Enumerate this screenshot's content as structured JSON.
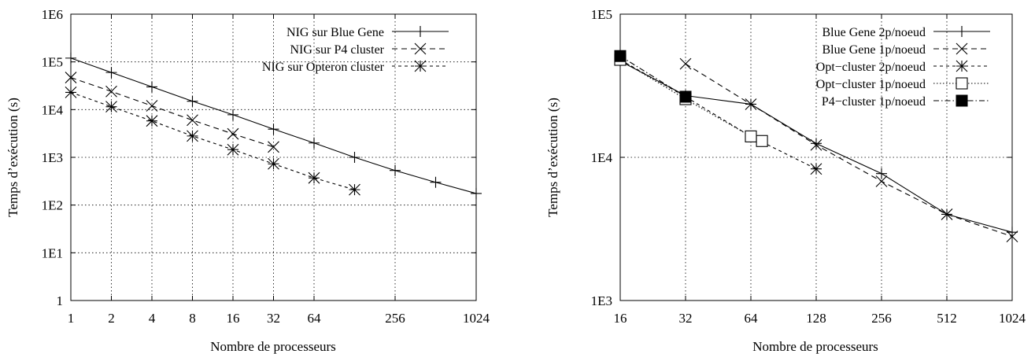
{
  "chart_data": [
    {
      "type": "line",
      "title": "",
      "xlabel": "Nombre de processeurs",
      "ylabel": "Temps d’exécution (s)",
      "x_scale": "log2",
      "y_scale": "log10",
      "xlim": [
        1,
        1024
      ],
      "ylim": [
        1,
        1000000
      ],
      "x_ticks": [
        1,
        2,
        4,
        8,
        16,
        32,
        64,
        256,
        1024
      ],
      "x_tick_labels": [
        "1",
        "2",
        "4",
        "8",
        "16",
        "32",
        "64",
        "256",
        "1024"
      ],
      "y_ticks": [
        1,
        10,
        100,
        1000,
        10000,
        100000,
        1000000
      ],
      "y_tick_labels": [
        "1",
        "1E1",
        "1E2",
        "1E3",
        "1E4",
        "1E5",
        "1E6"
      ],
      "grid": true,
      "legend_position": "top-right",
      "series": [
        {
          "name": "NIG sur Blue Gene",
          "marker": "plus",
          "line": "solid",
          "x": [
            1,
            2,
            4,
            8,
            16,
            32,
            64,
            128,
            256,
            512,
            1024
          ],
          "y": [
            120000,
            60000,
            30000,
            15000,
            7800,
            3900,
            2000,
            1000,
            530,
            300,
            175
          ]
        },
        {
          "name": "NIG sur P4 cluster",
          "marker": "x",
          "line": "dashed",
          "x": [
            1,
            2,
            4,
            8,
            16,
            32
          ],
          "y": [
            47000,
            24000,
            12000,
            6000,
            3100,
            1650
          ]
        },
        {
          "name": "NIG sur Opteron cluster",
          "marker": "star",
          "line": "short-dash",
          "x": [
            1,
            2,
            4,
            8,
            16,
            32,
            64,
            128
          ],
          "y": [
            23000,
            11500,
            5800,
            2800,
            1450,
            730,
            370,
            210
          ]
        }
      ]
    },
    {
      "type": "line",
      "title": "",
      "xlabel": "Nombre de processeurs",
      "ylabel": "Temps d’exécution (s)",
      "x_scale": "log2",
      "y_scale": "log10",
      "xlim": [
        16,
        1024
      ],
      "ylim": [
        1000,
        100000
      ],
      "x_ticks": [
        16,
        32,
        64,
        128,
        256,
        512,
        1024
      ],
      "x_tick_labels": [
        "16",
        "32",
        "64",
        "128",
        "256",
        "512",
        "1024"
      ],
      "y_ticks": [
        1000,
        10000,
        100000
      ],
      "y_tick_labels": [
        "1E3",
        "1E4",
        "1E5"
      ],
      "grid": true,
      "legend_position": "top-right",
      "series": [
        {
          "name": "Blue Gene 2p/noeud",
          "marker": "plus",
          "line": "solid",
          "x": [
            16,
            32,
            64,
            128,
            256,
            512,
            1024
          ],
          "y": [
            47000,
            27000,
            23500,
            12500,
            7700,
            4000,
            3000
          ]
        },
        {
          "name": "Blue Gene 1p/noeud",
          "marker": "x",
          "line": "dashed",
          "x": [
            32,
            64,
            128,
            256,
            512,
            1024
          ],
          "y": [
            45000,
            23500,
            12200,
            6800,
            4000,
            2800
          ]
        },
        {
          "name": "Opt−cluster 2p/noeud",
          "marker": "star",
          "line": "short-dash",
          "x": [
            16,
            32,
            64,
            128
          ],
          "y": [
            48000,
            26500,
            14000,
            8300
          ]
        },
        {
          "name": "Opt−cluster 1p/noeud",
          "marker": "open-square",
          "line": "dotted",
          "x": [
            16,
            32,
            64,
            72
          ],
          "y": [
            48000,
            25500,
            14000,
            13000
          ]
        },
        {
          "name": "P4−cluster 1p/noeud",
          "marker": "filled-square",
          "line": "dash-dot",
          "x": [
            16,
            32
          ],
          "y": [
            51000,
            26500
          ]
        }
      ]
    }
  ]
}
